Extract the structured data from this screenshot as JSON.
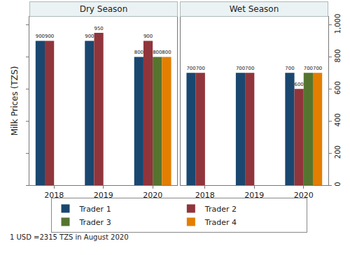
{
  "chart_data": [
    {
      "type": "bar",
      "title": "Dry Season",
      "y_label": "Milk Prices (TZS)",
      "categories": [
        "2018",
        "2019",
        "2020"
      ],
      "series": [
        {
          "name": "Trader 1",
          "color": "#1a476f",
          "values": [
            900,
            900,
            800
          ]
        },
        {
          "name": "Trader 2",
          "color": "#90353b",
          "values": [
            900,
            950,
            900
          ]
        },
        {
          "name": "Trader 3",
          "color": "#55752f",
          "values": [
            null,
            null,
            800
          ]
        },
        {
          "name": "Trader 4",
          "color": "#e37e00",
          "values": [
            null,
            null,
            800
          ]
        }
      ],
      "ylim": [
        0,
        1050
      ],
      "yticks": [
        0,
        200,
        400,
        600,
        800,
        {
          "value": 1000,
          "label": "1,000"
        }
      ],
      "grid": false,
      "data_labels": true,
      "tick_labels": "x",
      "legend": "bottom",
      "annotations": [
        "1 USD =2315 TZS in August 2020"
      ]
    },
    {
      "type": "bar",
      "title": "Wet Season",
      "categories": [
        "2018",
        "2019",
        "2020"
      ],
      "series": [
        {
          "name": "Trader 1",
          "color": "#1a476f",
          "values": [
            700,
            700,
            700
          ]
        },
        {
          "name": "Trader 2",
          "color": "#90353b",
          "values": [
            700,
            700,
            600
          ]
        },
        {
          "name": "Trader 3",
          "color": "#55752f",
          "values": [
            null,
            null,
            700
          ]
        },
        {
          "name": "Trader 4",
          "color": "#e37e00",
          "values": [
            null,
            null,
            700
          ]
        }
      ],
      "ylim": [
        0,
        1050
      ],
      "yticks": [
        0,
        200,
        400,
        600,
        800,
        {
          "value": 1000,
          "label": "1,000"
        }
      ],
      "grid": false,
      "data_labels": true
    }
  ]
}
